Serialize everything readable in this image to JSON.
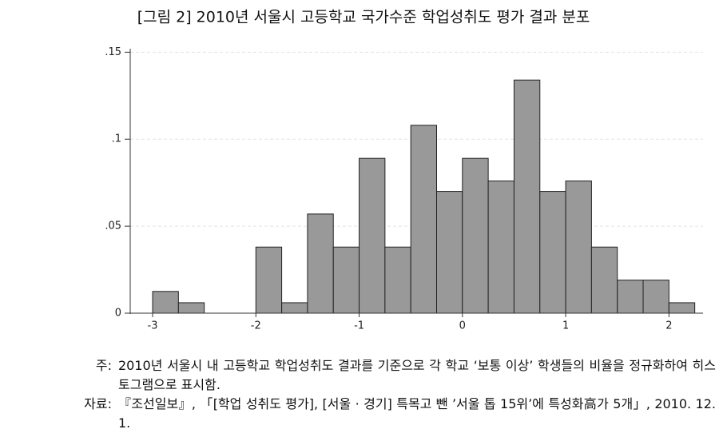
{
  "chart_data": {
    "type": "histogram",
    "title": "[그림 2] 2010년 서울시 고등학교 국가수준 학업성취도 평가 결과 분포",
    "bins": [
      -3,
      -2.75,
      -2.5,
      -2.25,
      -2,
      -1.75,
      -1.5,
      -1.25,
      -1,
      -0.75,
      -0.5,
      -0.25,
      0,
      0.25,
      0.5,
      0.75,
      1,
      1.25,
      1.5,
      1.75,
      2,
      2.25
    ],
    "values": [
      0.0125,
      0.006,
      0,
      0,
      0.038,
      0.006,
      0.057,
      0.038,
      0.089,
      0.038,
      0.108,
      0.07,
      0.089,
      0.076,
      0.134,
      0.07,
      0.076,
      0.038,
      0.019,
      0.019,
      0.006
    ],
    "color": "#999999",
    "xlim": [
      -3.24,
      2.33
    ],
    "xticks": [
      -3,
      -2,
      -1,
      0,
      1,
      2
    ],
    "ylim": [
      0,
      0.152
    ],
    "yticks": [
      0,
      {
        "value": 0.05,
        "label": ".05"
      },
      {
        "value": 0.1,
        "label": ".1"
      },
      {
        "value": 0.15,
        "label": ".15"
      }
    ],
    "grid": true
  },
  "notes": {
    "note_label": "주:",
    "note_text": "2010년 서울시 내 고등학교 학업성취도 결과를 기준으로 각 학교 ‘보통 이상’ 학생들의 비율을 정규화하여 히스토그램으로 표시함.",
    "source_label": "자료:",
    "source_text": "『조선일보』, 「[학업 성취도 평가], [서울 · 경기] 특목고 뺀 ’서울 톱 15위’에 특성화高가 5개」, 2010. 12. 1."
  }
}
